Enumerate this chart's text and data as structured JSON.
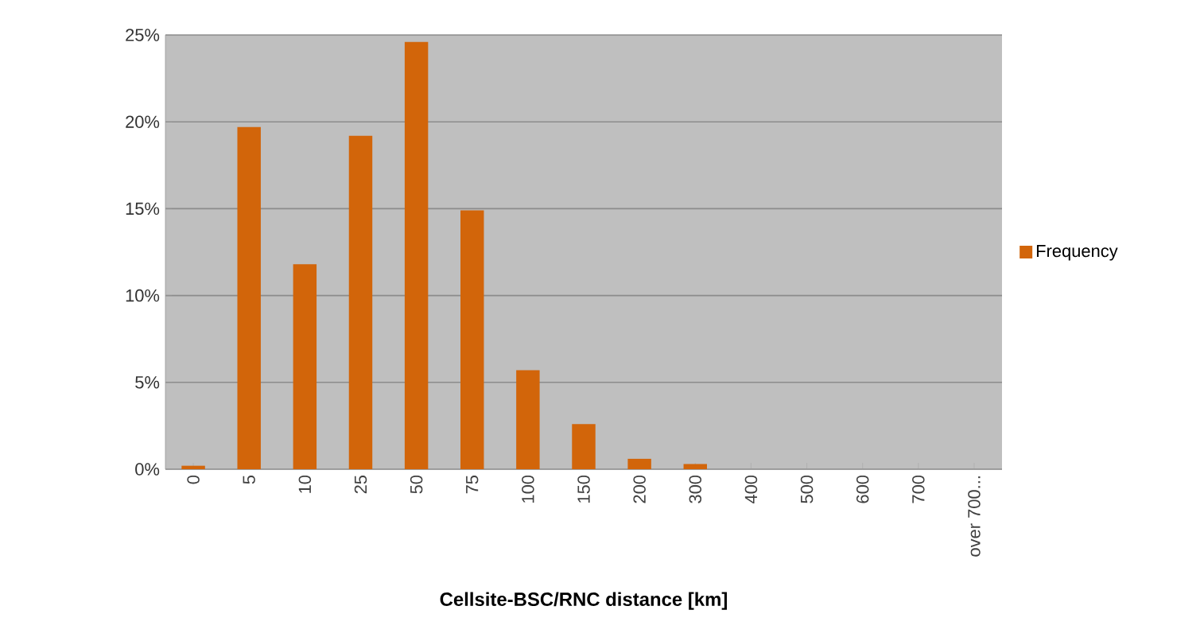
{
  "chart_data": {
    "type": "bar",
    "xlabel": "Cellsite-BSC/RNC distance [km]",
    "categories": [
      "0",
      "5",
      "10",
      "25",
      "50",
      "75",
      "100",
      "150",
      "200",
      "300",
      "400",
      "500",
      "600",
      "700",
      "over 700..."
    ],
    "series": [
      {
        "name": "Frequency",
        "color": "#d2650a",
        "values": [
          0.2,
          19.7,
          11.8,
          19.2,
          24.6,
          14.9,
          5.7,
          2.6,
          0.6,
          0.3,
          0,
          0,
          0,
          0,
          0
        ]
      }
    ],
    "ylim": [
      0,
      25
    ],
    "yticks": [
      {
        "value": 0,
        "label": "0%"
      },
      {
        "value": 5,
        "label": "5%"
      },
      {
        "value": 10,
        "label": "10%"
      },
      {
        "value": 15,
        "label": "15%"
      },
      {
        "value": 20,
        "label": "20%"
      },
      {
        "value": 25,
        "label": "25%"
      }
    ],
    "grid": "y",
    "legend": "right"
  }
}
